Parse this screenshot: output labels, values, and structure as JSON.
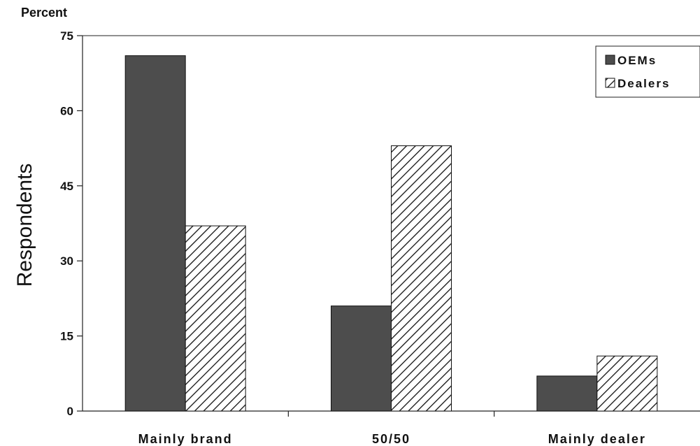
{
  "chart_data": {
    "type": "bar",
    "ylabel": "Respondents",
    "yunit": "Percent",
    "ylim": [
      0,
      75
    ],
    "yticks": [
      0,
      15,
      30,
      45,
      60,
      75
    ],
    "categories": [
      "Mainly brand",
      "50/50",
      "Mainly dealer"
    ],
    "series": [
      {
        "name": "OEMs",
        "values": [
          71,
          21,
          7
        ],
        "color": "#4d4d4d",
        "fill": "solid"
      },
      {
        "name": "Dealers",
        "values": [
          37,
          53,
          11
        ],
        "color": "#111111",
        "fill": "hatch"
      }
    ],
    "legend_position": "top-right",
    "grid": false
  }
}
